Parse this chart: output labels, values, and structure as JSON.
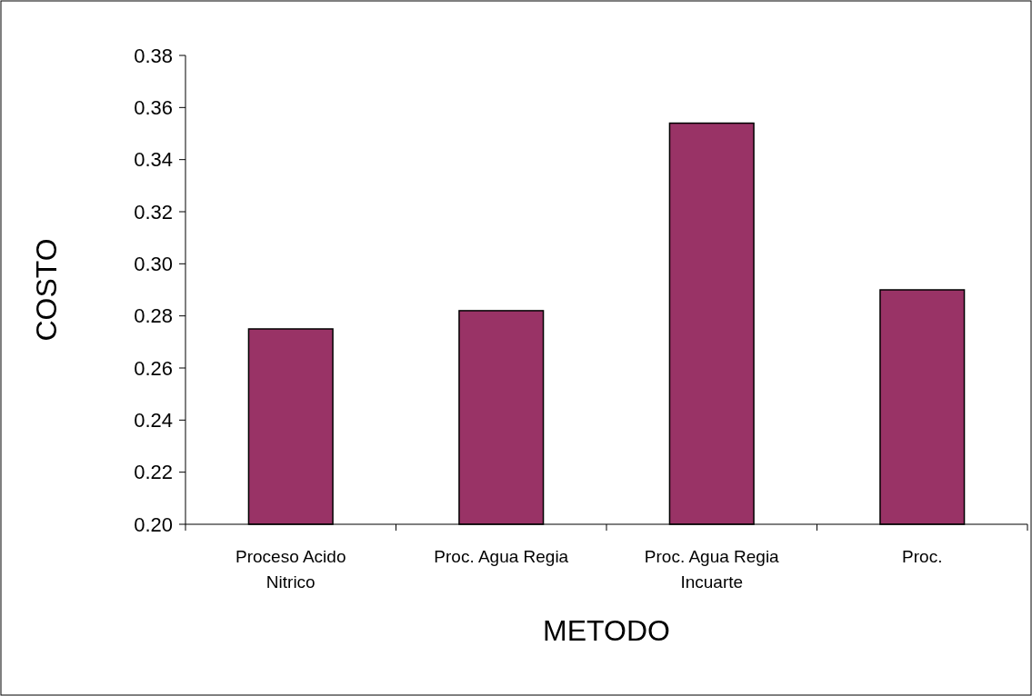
{
  "chart_data": {
    "type": "bar",
    "xlabel": "METODO",
    "ylabel": "COSTO",
    "categories": [
      "Proceso Acido Nitrico",
      "Proc. Agua Regia",
      "Proc. Agua Regia Incuarte",
      "Proc."
    ],
    "values": [
      0.275,
      0.282,
      0.354,
      0.29
    ],
    "color": "#993366",
    "ylim": [
      0.2,
      0.38
    ],
    "yticks": [
      {
        "value": 0.2,
        "label": "0.20"
      },
      {
        "value": 0.22,
        "label": "0.22"
      },
      {
        "value": 0.24,
        "label": "0.24"
      },
      {
        "value": 0.26,
        "label": "0.26"
      },
      {
        "value": 0.28,
        "label": "0.28"
      },
      {
        "value": 0.3,
        "label": "0.30"
      },
      {
        "value": 0.32,
        "label": "0.32"
      },
      {
        "value": 0.34,
        "label": "0.34"
      },
      {
        "value": 0.36,
        "label": "0.36"
      },
      {
        "value": 0.38,
        "label": "0.38"
      }
    ],
    "grid": false
  }
}
